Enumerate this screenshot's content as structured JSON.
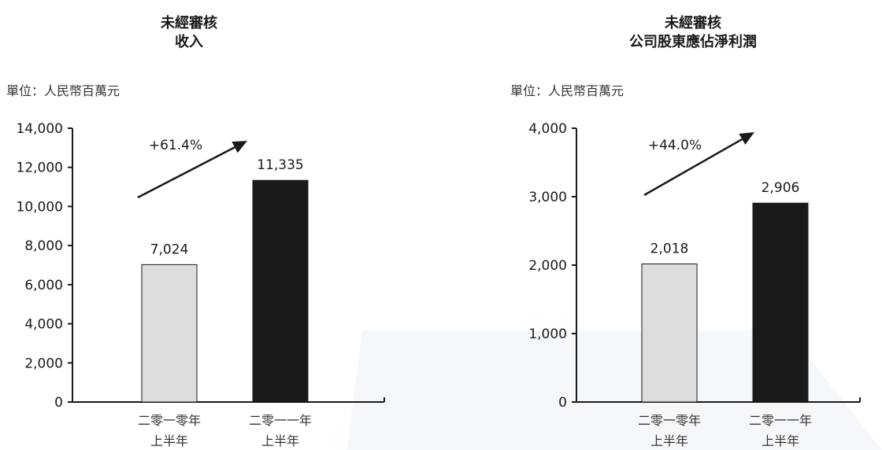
{
  "charts": [
    {
      "title_line1": "未經審核",
      "title_line2": "收入",
      "unit": "單位：人民幣百萬元",
      "growth": "+61.4%"
    },
    {
      "title_line1": "未經審核",
      "title_line2": "公司股東應佔淨利潤",
      "unit": "單位：人民幣百萬元",
      "growth": "+44.0%"
    }
  ],
  "colors": {
    "bar_2010": "#dddddd",
    "bar_2011": "#1a1a1a",
    "axis": "#1a1a1a"
  },
  "chart_data": [
    {
      "type": "bar",
      "title": "未經審核 收入",
      "ylabel": "單位：人民幣百萬元",
      "categories": [
        [
          "二零一零年",
          "上半年"
        ],
        [
          "二零一一年",
          "上半年"
        ]
      ],
      "values": [
        7024,
        11335
      ],
      "value_labels": [
        "7,024",
        "11,335"
      ],
      "ylim": [
        0,
        14000
      ],
      "yticks": [
        0,
        2000,
        4000,
        6000,
        8000,
        10000,
        12000,
        14000
      ],
      "ytick_labels": [
        "0",
        "2,000",
        "4,000",
        "6,000",
        "8,000",
        "10,000",
        "12,000",
        "14,000"
      ],
      "annotation": "+61.4%",
      "grid": false
    },
    {
      "type": "bar",
      "title": "未經審核 公司股東應佔淨利潤",
      "ylabel": "單位：人民幣百萬元",
      "categories": [
        [
          "二零一零年",
          "上半年"
        ],
        [
          "二零一一年",
          "上半年"
        ]
      ],
      "values": [
        2018,
        2906
      ],
      "value_labels": [
        "2,018",
        "2,906"
      ],
      "ylim": [
        0,
        4000
      ],
      "yticks": [
        0,
        1000,
        2000,
        3000,
        4000
      ],
      "ytick_labels": [
        "0",
        "1,000",
        "2,000",
        "3,000",
        "4,000"
      ],
      "annotation": "+44.0%",
      "grid": false
    }
  ]
}
